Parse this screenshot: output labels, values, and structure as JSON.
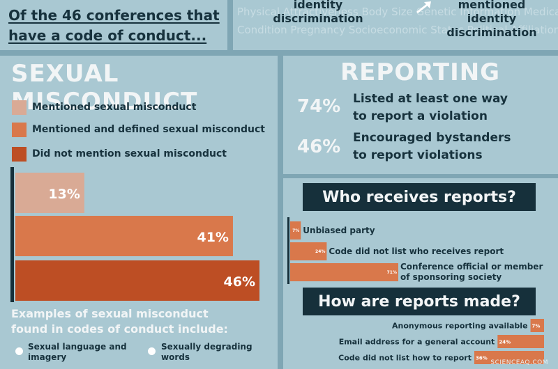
{
  "header": {
    "line1": "Of the 46 conferences that",
    "line2": "have a code of conduct..."
  },
  "top_right": {
    "faded_row1": "Physical Attractiveness  Body Size  Genetic Information  Medical",
    "faded_row2": "Condition  Pregnancy  Socioeconomic Status  Political Affiliation",
    "ident_a1": "identity",
    "ident_a2": "discrimination",
    "ident_b1": "mentioned identity",
    "ident_b2": "discrimination"
  },
  "sexual_misconduct": {
    "title": "SEXUAL MISCONDUCT",
    "legend": [
      {
        "label": "Mentioned sexual misconduct",
        "color": "#d9aa95"
      },
      {
        "label": "Mentioned and defined sexual misconduct",
        "color": "#d9784b"
      },
      {
        "label": "Did not mention sexual misconduct",
        "color": "#bd4e24"
      }
    ],
    "examples_line1": "Examples of sexual misconduct",
    "examples_line2": "found in codes of conduct include:",
    "examples": [
      {
        "line1": "Sexual language and",
        "line2": "imagery"
      },
      {
        "line1": "Sexually degrading",
        "line2": "words"
      }
    ]
  },
  "reporting": {
    "title": "REPORTING",
    "stats": [
      {
        "pct": "74%",
        "line1": "Listed at least one way",
        "line2": "to report a violation"
      },
      {
        "pct": "46%",
        "line1": "Encouraged bystanders",
        "line2": "to report violations"
      }
    ]
  },
  "who_receives": {
    "title": "Who receives reports?"
  },
  "how_made": {
    "title": "How are reports made?"
  },
  "credit": "SCIENCEAQ.COM",
  "chart_data": [
    {
      "type": "bar",
      "categories": [
        "Mentioned sexual misconduct",
        "Mentioned and defined sexual misconduct",
        "Did not mention sexual misconduct"
      ],
      "values": [
        13,
        41,
        46
      ],
      "labels": [
        "13%",
        "41%",
        "46%"
      ],
      "colors": [
        "#d9aa95",
        "#d9784b",
        "#bd4e24"
      ],
      "orientation": "horizontal",
      "xlim": [
        0,
        46
      ]
    },
    {
      "type": "bar",
      "title": "Who receives reports?",
      "categories": [
        "Unbiased party",
        "Code did not list who receives report",
        "Conference official or member of sponsoring society"
      ],
      "category_lines": [
        [
          "Unbiased party"
        ],
        [
          "Code did not list who receives report"
        ],
        [
          "Conference official or member",
          "of sponsoring society"
        ]
      ],
      "values": [
        7,
        24,
        71
      ],
      "labels": [
        "7%",
        "24%",
        "71%"
      ],
      "orientation": "horizontal",
      "xlim": [
        0,
        71
      ]
    },
    {
      "type": "bar",
      "title": "How are reports made?",
      "categories": [
        "Anonymous reporting available",
        "Email address for a general account",
        "Code did not list how to report"
      ],
      "values": [
        7,
        24,
        36
      ],
      "labels": [
        "7%",
        "24%",
        "36%"
      ],
      "orientation": "horizontal",
      "xlim": [
        0,
        36
      ]
    }
  ]
}
